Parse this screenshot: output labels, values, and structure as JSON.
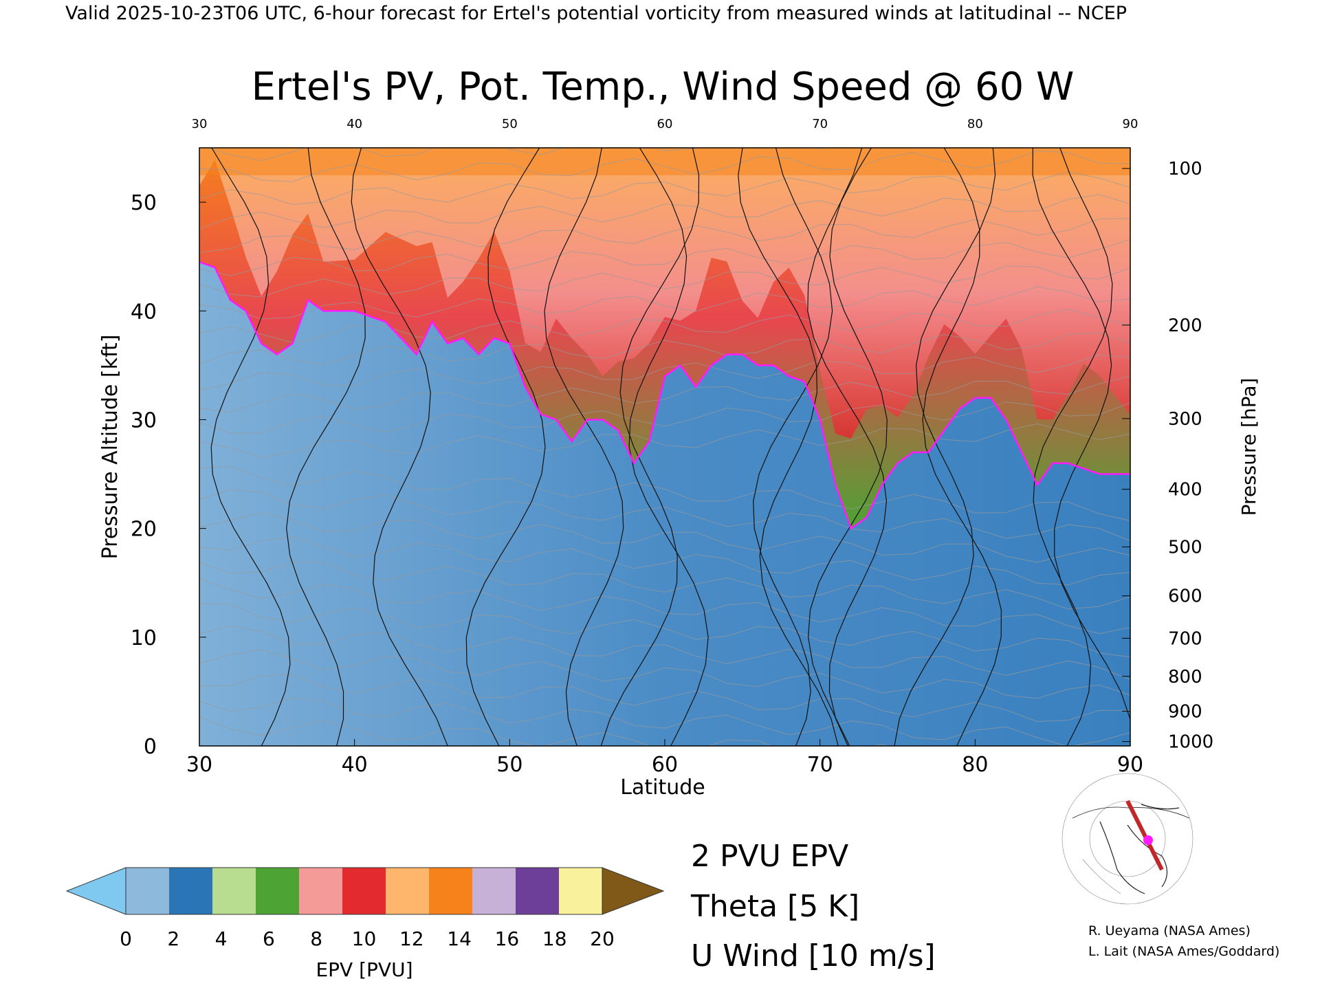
{
  "header": "Valid 2025-10-23T06 UTC, 6-hour forecast for Ertel's potential vorticity from measured winds at latitudinal -- NCEP",
  "chart_data": {
    "type": "heatmap",
    "title": "Ertel's PV, Pot. Temp., Wind Speed @ 60 W",
    "xlabel": "Latitude",
    "ylabel": "Pressure Altitude [kft]",
    "ylabel_right": "Pressure [hPa]",
    "xlim": [
      30,
      90
    ],
    "ylim": [
      0,
      55
    ],
    "x_ticks": [
      "30",
      "40",
      "50",
      "60",
      "70",
      "80",
      "90"
    ],
    "x_ticks_top": [
      "30",
      "40",
      "50",
      "60",
      "70",
      "80",
      "90"
    ],
    "y_ticks": [
      "0",
      "10",
      "20",
      "30",
      "40",
      "50"
    ],
    "pressure_ticks": [
      {
        "label": "100",
        "kft": 53.1
      },
      {
        "label": "200",
        "kft": 38.7
      },
      {
        "label": "300",
        "kft": 30.1
      },
      {
        "label": "400",
        "kft": 23.6
      },
      {
        "label": "500",
        "kft": 18.3
      },
      {
        "label": "600",
        "kft": 13.8
      },
      {
        "label": "700",
        "kft": 9.9
      },
      {
        "label": "800",
        "kft": 6.4
      },
      {
        "label": "900",
        "kft": 3.2
      },
      {
        "label": "1000",
        "kft": 0.4
      }
    ],
    "tropopause_2pvu_kft": [
      [
        30,
        44.5
      ],
      [
        31,
        44
      ],
      [
        32,
        41
      ],
      [
        33,
        40
      ],
      [
        34,
        37
      ],
      [
        35,
        36
      ],
      [
        36,
        37
      ],
      [
        37,
        41
      ],
      [
        38,
        40
      ],
      [
        40,
        40
      ],
      [
        42,
        39
      ],
      [
        44,
        36
      ],
      [
        45,
        39
      ],
      [
        46,
        37
      ],
      [
        47,
        37.5
      ],
      [
        48,
        36
      ],
      [
        49,
        37.5
      ],
      [
        50,
        37
      ],
      [
        51,
        33
      ],
      [
        52,
        30.5
      ],
      [
        53,
        30
      ],
      [
        54,
        28
      ],
      [
        55,
        30
      ],
      [
        56,
        30
      ],
      [
        57,
        29
      ],
      [
        58,
        26
      ],
      [
        59,
        28
      ],
      [
        60,
        34
      ],
      [
        61,
        35
      ],
      [
        62,
        33
      ],
      [
        63,
        35
      ],
      [
        64,
        36
      ],
      [
        65,
        36
      ],
      [
        66,
        35
      ],
      [
        67,
        35
      ],
      [
        68,
        34
      ],
      [
        69,
        33.5
      ],
      [
        70,
        30
      ],
      [
        71,
        24
      ],
      [
        72,
        20
      ],
      [
        73,
        21
      ],
      [
        74,
        24
      ],
      [
        75,
        26
      ],
      [
        76,
        27
      ],
      [
        77,
        27
      ],
      [
        78,
        29
      ],
      [
        79,
        31
      ],
      [
        80,
        32
      ],
      [
        81,
        32
      ],
      [
        82,
        30
      ],
      [
        83,
        27
      ],
      [
        84,
        24
      ],
      [
        85,
        26
      ],
      [
        86,
        26
      ],
      [
        87,
        25.5
      ],
      [
        88,
        25
      ],
      [
        90,
        25
      ]
    ],
    "theta_contour_step": "5 K",
    "u_wind_contour_step": "10 m/s",
    "colorbar": {
      "label": "EPV [PVU]",
      "ticks": [
        "0",
        "2",
        "4",
        "6",
        "8",
        "10",
        "12",
        "14",
        "16",
        "18",
        "20"
      ],
      "colors": [
        "#7fc8f0",
        "#8dbadc",
        "#2a75b5",
        "#b9dd90",
        "#4da334",
        "#f49a98",
        "#e32a2e",
        "#fdb66b",
        "#f6821c",
        "#c7b1d6",
        "#6e3f98",
        "#f9f19c",
        "#805818"
      ]
    },
    "legend": [
      {
        "label": "2 PVU EPV",
        "color": "#ff1aff"
      },
      {
        "label": "Theta [5 K]",
        "color": "#aaaaaa"
      },
      {
        "label": "U Wind [10 m/s]",
        "color": "#000000"
      }
    ]
  },
  "credits": [
    "R. Ueyama (NASA Ames)",
    "L. Lait (NASA Ames/Goddard)"
  ]
}
